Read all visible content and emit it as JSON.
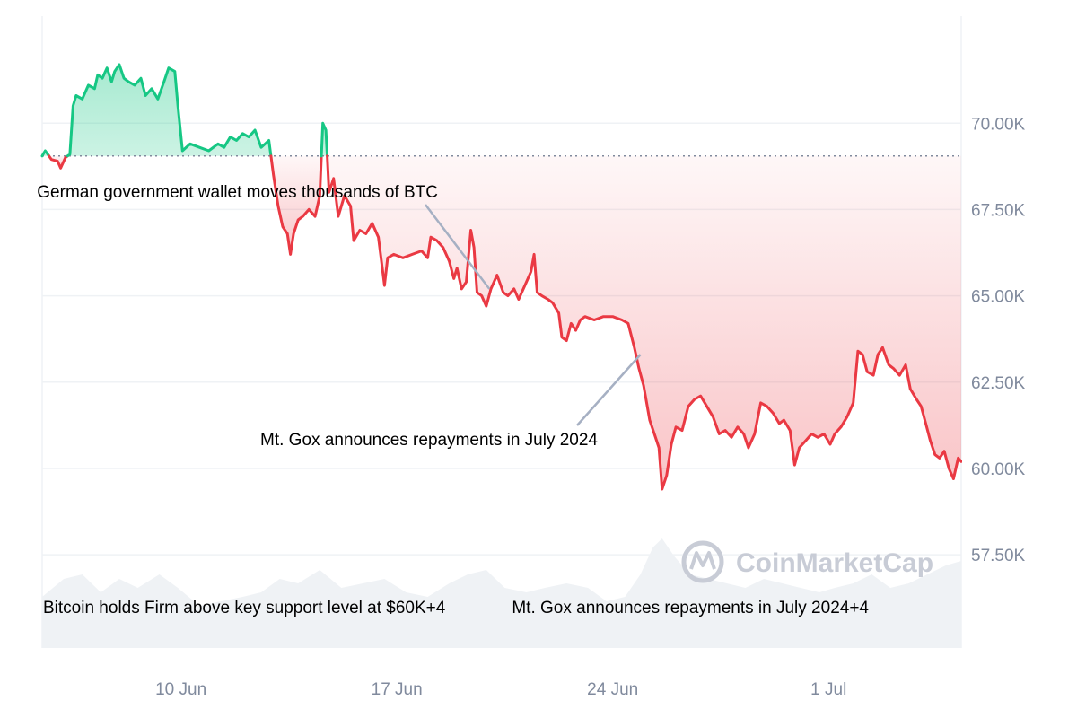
{
  "chart_data": {
    "type": "area",
    "title": "",
    "xlabel": "",
    "ylabel": "",
    "ylim": [
      54800,
      73100
    ],
    "yticks": [
      57500,
      60000,
      62500,
      65000,
      67500,
      70000
    ],
    "ytick_labels": [
      "57.50K",
      "60.00K",
      "62.50K",
      "65.00K",
      "67.50K",
      "70.00K"
    ],
    "xticks": [
      {
        "day": 10,
        "label": "10 Jun"
      },
      {
        "day": 17,
        "label": "17 Jun"
      },
      {
        "day": 24,
        "label": "24 Jun"
      },
      {
        "day": 31,
        "label": "1 Jul"
      }
    ],
    "xlim_days": [
      5.5,
      35.3
    ],
    "x_axis_note": "day of June 2024 (31 = 1 Jul)",
    "baseline": 69050,
    "grid": true,
    "series": [
      {
        "up_color": "#16c784",
        "down_color": "#ea3943",
        "points": [
          [
            5.5,
            69050
          ],
          [
            5.6,
            69200
          ],
          [
            5.8,
            68950
          ],
          [
            6.0,
            68900
          ],
          [
            6.1,
            68700
          ],
          [
            6.25,
            69000
          ],
          [
            6.4,
            69100
          ],
          [
            6.5,
            70500
          ],
          [
            6.6,
            70800
          ],
          [
            6.8,
            70700
          ],
          [
            7.0,
            71100
          ],
          [
            7.2,
            71000
          ],
          [
            7.3,
            71400
          ],
          [
            7.45,
            71300
          ],
          [
            7.6,
            71600
          ],
          [
            7.75,
            71200
          ],
          [
            7.85,
            71500
          ],
          [
            8.0,
            71700
          ],
          [
            8.15,
            71300
          ],
          [
            8.3,
            71200
          ],
          [
            8.5,
            71100
          ],
          [
            8.7,
            71300
          ],
          [
            8.85,
            70800
          ],
          [
            9.05,
            71000
          ],
          [
            9.25,
            70700
          ],
          [
            9.45,
            71200
          ],
          [
            9.6,
            71600
          ],
          [
            9.8,
            71500
          ],
          [
            9.9,
            70500
          ],
          [
            10.05,
            69200
          ],
          [
            10.3,
            69400
          ],
          [
            10.6,
            69300
          ],
          [
            10.9,
            69200
          ],
          [
            11.2,
            69400
          ],
          [
            11.4,
            69300
          ],
          [
            11.6,
            69600
          ],
          [
            11.8,
            69500
          ],
          [
            12.0,
            69700
          ],
          [
            12.2,
            69600
          ],
          [
            12.4,
            69800
          ],
          [
            12.6,
            69300
          ],
          [
            12.85,
            69500
          ],
          [
            13.0,
            68500
          ],
          [
            13.15,
            67600
          ],
          [
            13.3,
            67000
          ],
          [
            13.45,
            66800
          ],
          [
            13.55,
            66200
          ],
          [
            13.65,
            66800
          ],
          [
            13.8,
            67200
          ],
          [
            13.95,
            67300
          ],
          [
            14.15,
            67500
          ],
          [
            14.35,
            67300
          ],
          [
            14.5,
            67900
          ],
          [
            14.6,
            70000
          ],
          [
            14.7,
            69800
          ],
          [
            14.8,
            68000
          ],
          [
            14.95,
            68400
          ],
          [
            15.1,
            67300
          ],
          [
            15.3,
            67900
          ],
          [
            15.5,
            67600
          ],
          [
            15.6,
            66600
          ],
          [
            15.8,
            66900
          ],
          [
            16.0,
            66800
          ],
          [
            16.2,
            67100
          ],
          [
            16.4,
            66700
          ],
          [
            16.5,
            66000
          ],
          [
            16.6,
            65300
          ],
          [
            16.7,
            66100
          ],
          [
            16.9,
            66200
          ],
          [
            17.2,
            66100
          ],
          [
            17.5,
            66200
          ],
          [
            17.8,
            66300
          ],
          [
            18.0,
            66100
          ],
          [
            18.1,
            66700
          ],
          [
            18.3,
            66600
          ],
          [
            18.5,
            66400
          ],
          [
            18.7,
            66000
          ],
          [
            18.85,
            65500
          ],
          [
            18.95,
            65800
          ],
          [
            19.1,
            65200
          ],
          [
            19.25,
            65400
          ],
          [
            19.4,
            66900
          ],
          [
            19.5,
            66400
          ],
          [
            19.6,
            65100
          ],
          [
            19.75,
            65000
          ],
          [
            19.9,
            64700
          ],
          [
            20.05,
            65200
          ],
          [
            20.25,
            65600
          ],
          [
            20.45,
            65100
          ],
          [
            20.6,
            65000
          ],
          [
            20.8,
            65200
          ],
          [
            20.95,
            64900
          ],
          [
            21.15,
            65300
          ],
          [
            21.35,
            65700
          ],
          [
            21.45,
            66200
          ],
          [
            21.55,
            65100
          ],
          [
            21.7,
            65000
          ],
          [
            21.9,
            64900
          ],
          [
            22.05,
            64800
          ],
          [
            22.25,
            64500
          ],
          [
            22.35,
            63800
          ],
          [
            22.5,
            63700
          ],
          [
            22.65,
            64200
          ],
          [
            22.8,
            64000
          ],
          [
            22.95,
            64300
          ],
          [
            23.1,
            64400
          ],
          [
            23.4,
            64300
          ],
          [
            23.7,
            64400
          ],
          [
            24.0,
            64400
          ],
          [
            24.3,
            64300
          ],
          [
            24.5,
            64200
          ],
          [
            24.7,
            63500
          ],
          [
            24.85,
            62900
          ],
          [
            25.0,
            62400
          ],
          [
            25.2,
            61400
          ],
          [
            25.35,
            61000
          ],
          [
            25.5,
            60600
          ],
          [
            25.6,
            59400
          ],
          [
            25.75,
            59800
          ],
          [
            25.9,
            60700
          ],
          [
            26.05,
            61200
          ],
          [
            26.25,
            61100
          ],
          [
            26.45,
            61800
          ],
          [
            26.65,
            62000
          ],
          [
            26.85,
            62100
          ],
          [
            27.05,
            61800
          ],
          [
            27.25,
            61500
          ],
          [
            27.45,
            61000
          ],
          [
            27.65,
            61100
          ],
          [
            27.85,
            60900
          ],
          [
            28.05,
            61200
          ],
          [
            28.25,
            61000
          ],
          [
            28.4,
            60600
          ],
          [
            28.6,
            61000
          ],
          [
            28.8,
            61900
          ],
          [
            29.0,
            61800
          ],
          [
            29.2,
            61600
          ],
          [
            29.4,
            61300
          ],
          [
            29.55,
            61400
          ],
          [
            29.75,
            61100
          ],
          [
            29.9,
            60100
          ],
          [
            30.05,
            60600
          ],
          [
            30.25,
            60800
          ],
          [
            30.45,
            61000
          ],
          [
            30.65,
            60900
          ],
          [
            30.85,
            61000
          ],
          [
            31.05,
            60700
          ],
          [
            31.2,
            61000
          ],
          [
            31.4,
            61200
          ],
          [
            31.6,
            61500
          ],
          [
            31.8,
            61900
          ],
          [
            31.95,
            63400
          ],
          [
            32.1,
            63300
          ],
          [
            32.25,
            62800
          ],
          [
            32.45,
            62700
          ],
          [
            32.6,
            63300
          ],
          [
            32.75,
            63500
          ],
          [
            32.95,
            63000
          ],
          [
            33.1,
            62900
          ],
          [
            33.3,
            62700
          ],
          [
            33.5,
            63000
          ],
          [
            33.65,
            62300
          ],
          [
            33.85,
            62000
          ],
          [
            34.0,
            61800
          ],
          [
            34.15,
            61300
          ],
          [
            34.3,
            60800
          ],
          [
            34.45,
            60400
          ],
          [
            34.6,
            60300
          ],
          [
            34.75,
            60500
          ],
          [
            34.9,
            60000
          ],
          [
            35.05,
            59700
          ],
          [
            35.2,
            60300
          ],
          [
            35.3,
            60200
          ]
        ]
      }
    ],
    "volume": [
      [
        5.5,
        0.35
      ],
      [
        6.2,
        0.55
      ],
      [
        6.8,
        0.6
      ],
      [
        7.4,
        0.4
      ],
      [
        8.0,
        0.55
      ],
      [
        8.6,
        0.45
      ],
      [
        9.3,
        0.6
      ],
      [
        9.9,
        0.45
      ],
      [
        10.6,
        0.25
      ],
      [
        11.3,
        0.3
      ],
      [
        12.0,
        0.35
      ],
      [
        12.6,
        0.4
      ],
      [
        13.2,
        0.55
      ],
      [
        13.8,
        0.5
      ],
      [
        14.5,
        0.65
      ],
      [
        15.2,
        0.45
      ],
      [
        15.9,
        0.5
      ],
      [
        16.6,
        0.55
      ],
      [
        17.3,
        0.4
      ],
      [
        18.0,
        0.35
      ],
      [
        18.7,
        0.5
      ],
      [
        19.3,
        0.6
      ],
      [
        19.9,
        0.65
      ],
      [
        20.5,
        0.45
      ],
      [
        21.2,
        0.4
      ],
      [
        21.8,
        0.45
      ],
      [
        22.5,
        0.5
      ],
      [
        23.2,
        0.45
      ],
      [
        23.8,
        0.3
      ],
      [
        24.4,
        0.35
      ],
      [
        24.9,
        0.6
      ],
      [
        25.3,
        0.9
      ],
      [
        25.6,
        1.0
      ],
      [
        26.0,
        0.8
      ],
      [
        26.5,
        0.6
      ],
      [
        27.1,
        0.55
      ],
      [
        27.7,
        0.5
      ],
      [
        28.3,
        0.45
      ],
      [
        28.9,
        0.55
      ],
      [
        29.5,
        0.5
      ],
      [
        30.1,
        0.45
      ],
      [
        30.7,
        0.4
      ],
      [
        31.2,
        0.45
      ],
      [
        31.8,
        0.5
      ],
      [
        32.4,
        0.6
      ],
      [
        33.0,
        0.45
      ],
      [
        33.6,
        0.5
      ],
      [
        34.2,
        0.6
      ],
      [
        34.8,
        0.7
      ],
      [
        35.3,
        0.75
      ]
    ],
    "annotations": [
      {
        "text": "German government wallet moves thousands of BTC",
        "day": 20.0,
        "value": 65200
      },
      {
        "text": "Mt. Gox announces repayments in July 2024",
        "day": 24.9,
        "value": 63300
      }
    ],
    "bottom_labels": [
      "Bitcoin holds Firm above key support level at $60K+4",
      "Mt. Gox announces repayments in July 2024+4"
    ]
  },
  "watermark": {
    "text": "CoinMarketCap",
    "icon": "coinmarketcap-logo-icon"
  }
}
